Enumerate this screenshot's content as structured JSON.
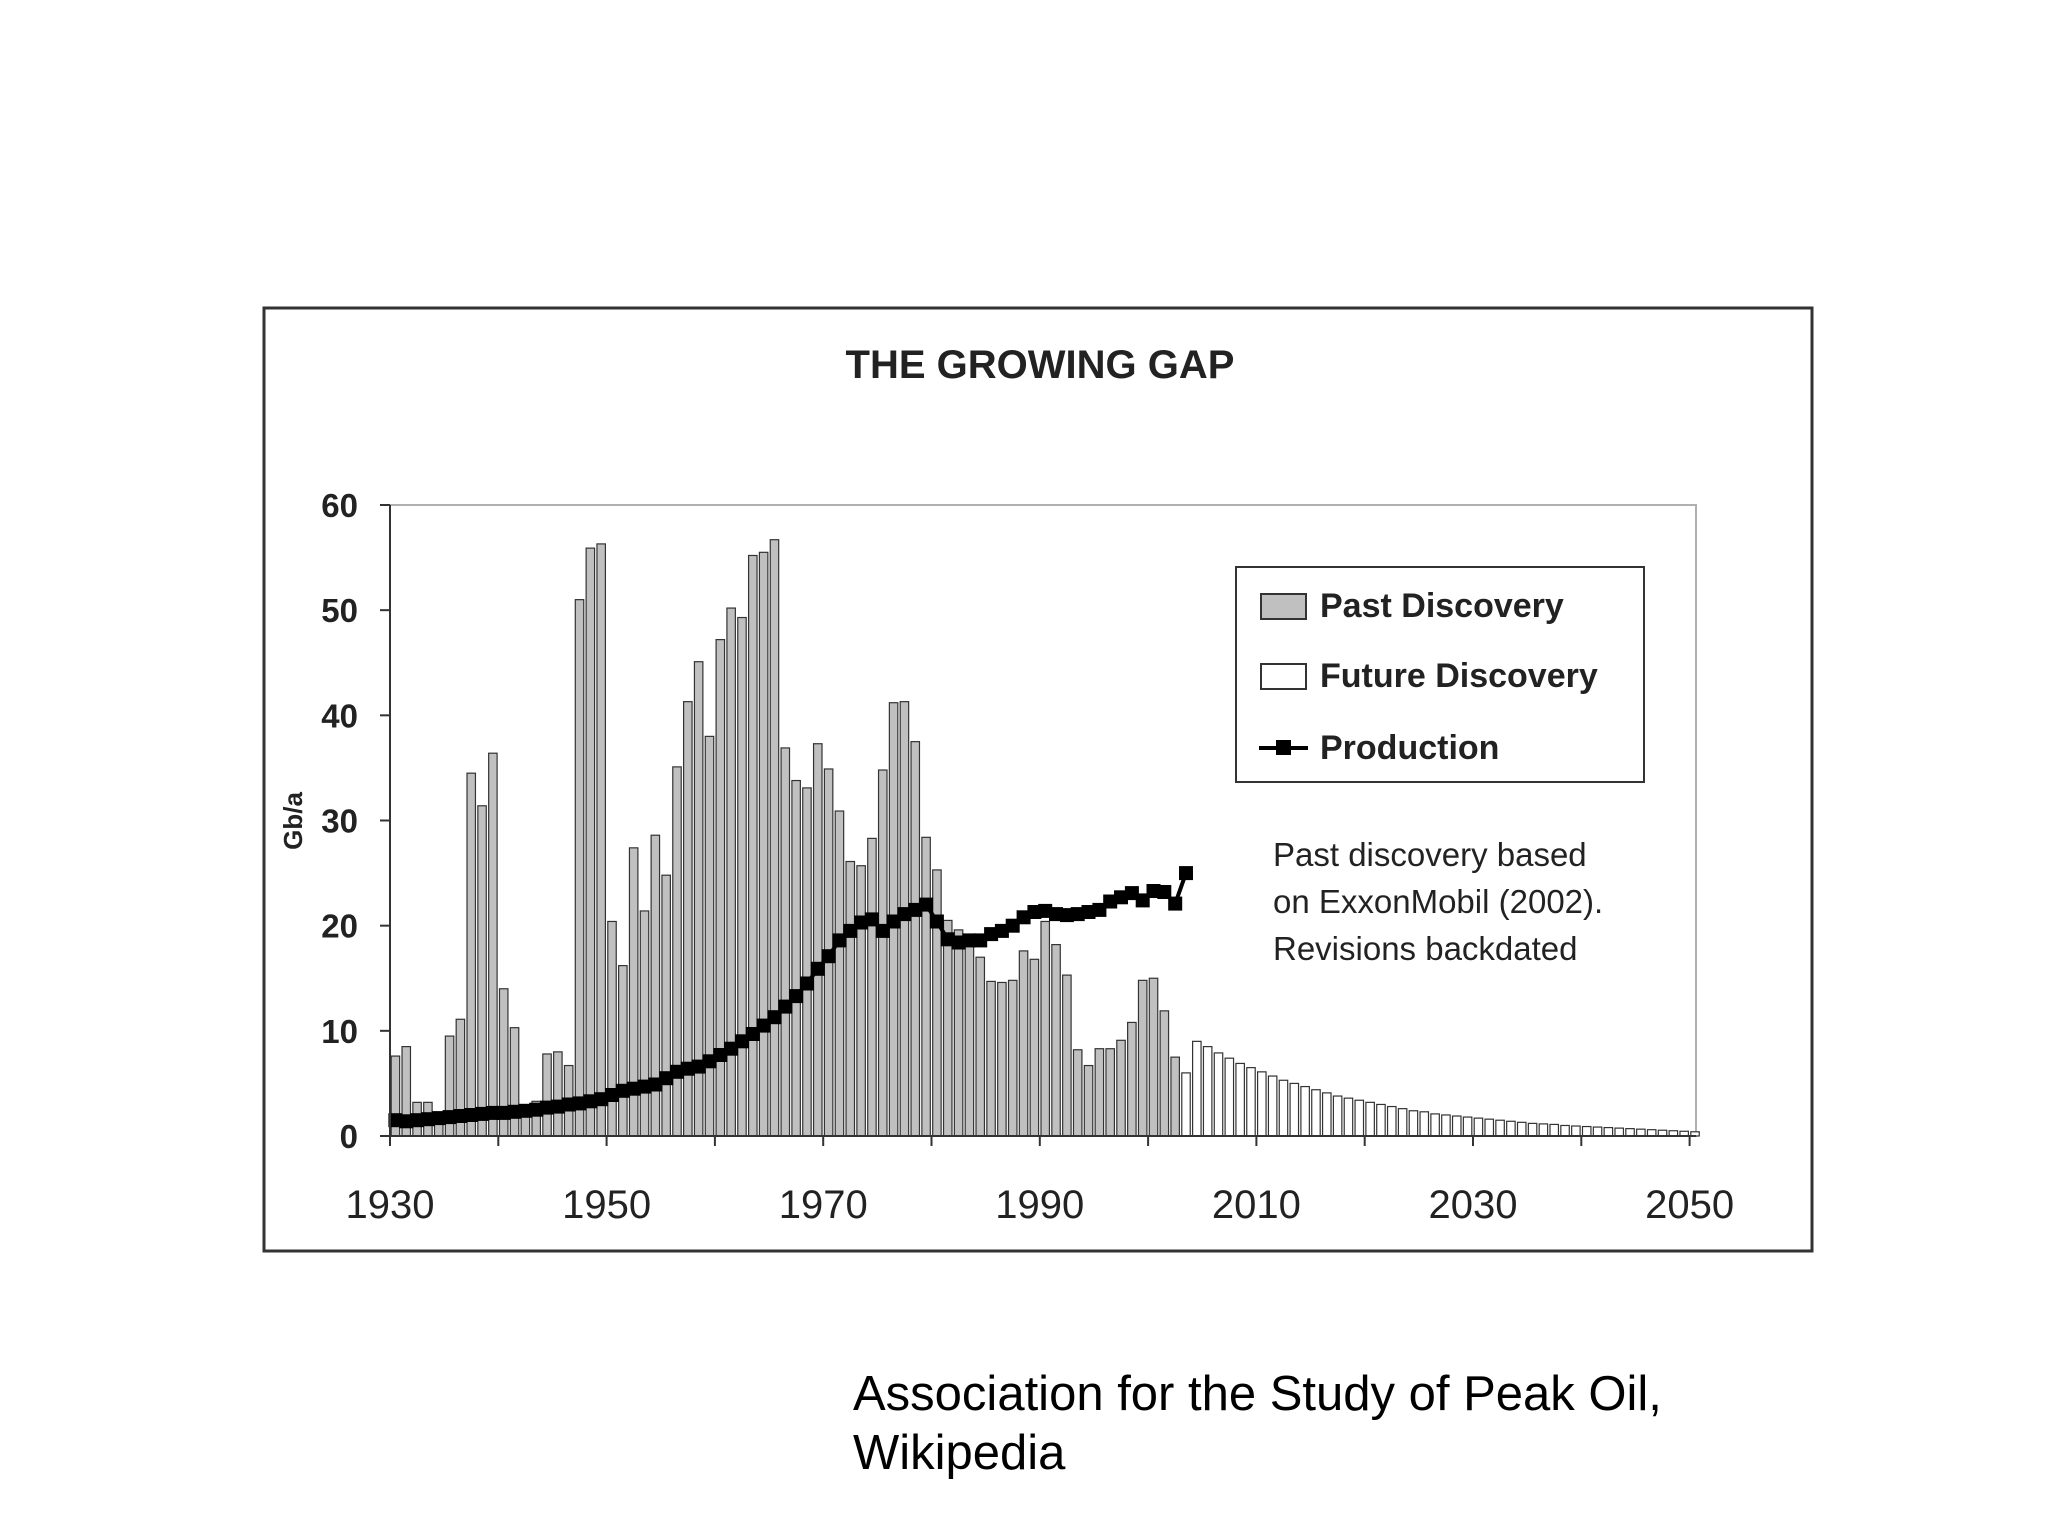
{
  "chart_data": {
    "type": "bar",
    "title": "THE GROWING GAP",
    "xlabel": "",
    "ylabel": "Gb/a",
    "xlim": [
      1930,
      2051
    ],
    "ylim": [
      0,
      60
    ],
    "x_ticks": [
      1930,
      1950,
      1970,
      1990,
      2010,
      2030,
      2050
    ],
    "y_ticks": [
      0,
      10,
      20,
      30,
      40,
      50,
      60
    ],
    "grid": false,
    "legend_position": "top-right",
    "series": [
      {
        "name": "Past Discovery",
        "kind": "bar",
        "color": "#c0c0c0",
        "x": [
          1930,
          1931,
          1932,
          1933,
          1934,
          1935,
          1936,
          1937,
          1938,
          1939,
          1940,
          1941,
          1942,
          1943,
          1944,
          1945,
          1946,
          1947,
          1948,
          1949,
          1950,
          1951,
          1952,
          1953,
          1954,
          1955,
          1956,
          1957,
          1958,
          1959,
          1960,
          1961,
          1962,
          1963,
          1964,
          1965,
          1966,
          1967,
          1968,
          1969,
          1970,
          1971,
          1972,
          1973,
          1974,
          1975,
          1976,
          1977,
          1978,
          1979,
          1980,
          1981,
          1982,
          1983,
          1984,
          1985,
          1986,
          1987,
          1988,
          1989,
          1990,
          1991,
          1992,
          1993,
          1994,
          1995,
          1996,
          1997,
          1998,
          1999,
          2000,
          2001,
          2002
        ],
        "values": [
          7.6,
          8.5,
          3.2,
          3.2,
          1.5,
          9.5,
          11.1,
          34.5,
          31.4,
          36.4,
          14.0,
          10.3,
          2.6,
          3.3,
          7.8,
          8.0,
          6.7,
          51.0,
          55.9,
          56.3,
          20.4,
          16.2,
          27.4,
          21.4,
          28.6,
          24.8,
          35.1,
          41.3,
          45.1,
          38.0,
          47.2,
          50.2,
          49.3,
          55.2,
          55.5,
          56.7,
          36.9,
          33.8,
          33.1,
          37.3,
          34.9,
          30.9,
          26.1,
          25.7,
          28.3,
          34.8,
          41.2,
          41.3,
          37.5,
          28.4,
          25.3,
          20.5,
          19.6,
          18.4,
          17.0,
          14.7,
          14.6,
          14.8,
          17.6,
          16.8,
          20.4,
          18.2,
          15.3,
          8.2,
          6.7,
          8.3,
          8.3,
          9.1,
          10.8,
          14.8,
          15.0,
          11.9,
          7.5
        ]
      },
      {
        "name": "Future Discovery",
        "kind": "bar",
        "color": "#ffffff",
        "x": [
          2003,
          2004,
          2005,
          2006,
          2007,
          2008,
          2009,
          2010,
          2011,
          2012,
          2013,
          2014,
          2015,
          2016,
          2017,
          2018,
          2019,
          2020,
          2021,
          2022,
          2023,
          2024,
          2025,
          2026,
          2027,
          2028,
          2029,
          2030,
          2031,
          2032,
          2033,
          2034,
          2035,
          2036,
          2037,
          2038,
          2039,
          2040,
          2041,
          2042,
          2043,
          2044,
          2045,
          2046,
          2047,
          2048,
          2049,
          2050
        ],
        "values": [
          6.0,
          9.0,
          8.5,
          7.9,
          7.4,
          6.9,
          6.5,
          6.1,
          5.7,
          5.3,
          5.0,
          4.7,
          4.4,
          4.1,
          3.8,
          3.6,
          3.4,
          3.2,
          3.0,
          2.8,
          2.6,
          2.4,
          2.3,
          2.1,
          2.0,
          1.9,
          1.8,
          1.7,
          1.6,
          1.5,
          1.4,
          1.3,
          1.2,
          1.15,
          1.1,
          1.0,
          0.95,
          0.9,
          0.85,
          0.8,
          0.75,
          0.7,
          0.65,
          0.6,
          0.55,
          0.5,
          0.45,
          0.4
        ]
      },
      {
        "name": "Production",
        "kind": "line",
        "color": "#000000",
        "x": [
          1930,
          1931,
          1932,
          1933,
          1934,
          1935,
          1936,
          1937,
          1938,
          1939,
          1940,
          1941,
          1942,
          1943,
          1944,
          1945,
          1946,
          1947,
          1948,
          1949,
          1950,
          1951,
          1952,
          1953,
          1954,
          1955,
          1956,
          1957,
          1958,
          1959,
          1960,
          1961,
          1962,
          1963,
          1964,
          1965,
          1966,
          1967,
          1968,
          1969,
          1970,
          1971,
          1972,
          1973,
          1974,
          1975,
          1976,
          1977,
          1978,
          1979,
          1980,
          1981,
          1982,
          1983,
          1984,
          1985,
          1986,
          1987,
          1988,
          1989,
          1990,
          1991,
          1992,
          1993,
          1994,
          1995,
          1996,
          1997,
          1998,
          1999,
          2000,
          2001,
          2002,
          2003
        ],
        "values": [
          1.5,
          1.4,
          1.5,
          1.6,
          1.7,
          1.8,
          1.9,
          2.0,
          2.1,
          2.2,
          2.2,
          2.3,
          2.4,
          2.5,
          2.7,
          2.8,
          3.0,
          3.1,
          3.3,
          3.5,
          3.9,
          4.3,
          4.5,
          4.7,
          4.9,
          5.5,
          6.1,
          6.4,
          6.6,
          7.1,
          7.7,
          8.3,
          9.0,
          9.7,
          10.5,
          11.3,
          12.3,
          13.3,
          14.5,
          15.9,
          17.1,
          18.6,
          19.5,
          20.3,
          20.6,
          19.5,
          20.4,
          21.1,
          21.5,
          22.0,
          20.4,
          18.7,
          18.4,
          18.6,
          18.6,
          19.2,
          19.5,
          20.0,
          20.8,
          21.3,
          21.4,
          21.1,
          21.0,
          21.1,
          21.3,
          21.5,
          22.3,
          22.7,
          23.1,
          22.4,
          23.3,
          23.2,
          22.1,
          25.0
        ]
      }
    ],
    "annotation": [
      "Past discovery based",
      "on ExxonMobil (2002).",
      "Revisions backdated"
    ]
  },
  "caption": {
    "line1": "Association for the Study of Peak Oil,",
    "line2": "Wikipedia"
  }
}
